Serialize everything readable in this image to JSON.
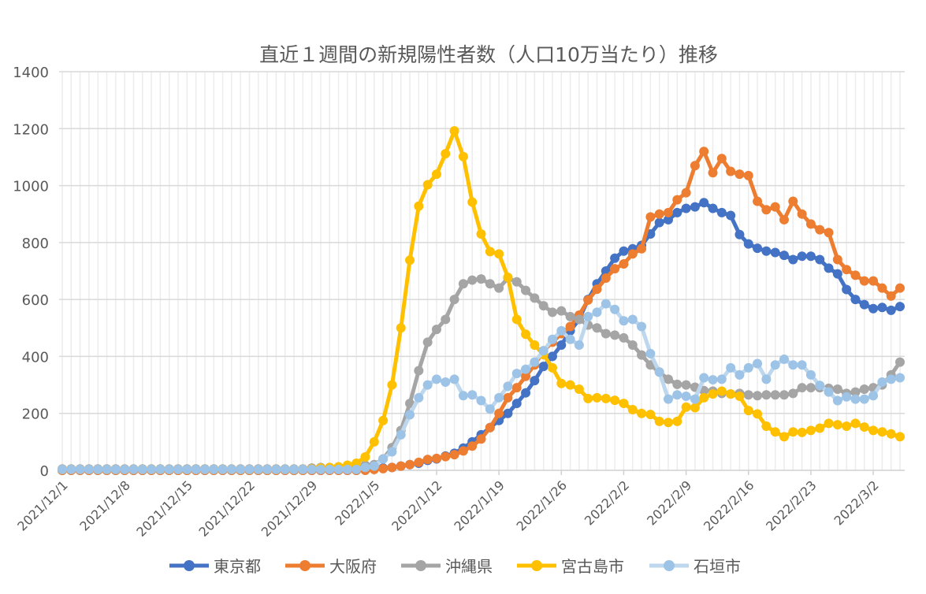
{
  "chart_data": {
    "type": "line",
    "title": "直近１週間の新規陽性者数（人口10万当たり）推移",
    "xlabel": "",
    "ylabel": "",
    "ylim": [
      0,
      1400
    ],
    "yticks": [
      0,
      200,
      400,
      600,
      800,
      1000,
      1200,
      1400
    ],
    "xtick_labels": [
      "2021/12/1",
      "2021/12/8",
      "2021/12/15",
      "2021/12/22",
      "2021/12/29",
      "2022/1/5",
      "2022/1/12",
      "2022/1/19",
      "2022/1/26",
      "2022/2/2",
      "2022/2/9",
      "2022/2/16",
      "2022/2/23",
      "2022/3/2"
    ],
    "grid": "on",
    "legend_position": "bottom",
    "x": [
      "2021/12/1",
      "2021/12/2",
      "2021/12/3",
      "2021/12/4",
      "2021/12/5",
      "2021/12/6",
      "2021/12/7",
      "2021/12/8",
      "2021/12/9",
      "2021/12/10",
      "2021/12/11",
      "2021/12/12",
      "2021/12/13",
      "2021/12/14",
      "2021/12/15",
      "2021/12/16",
      "2021/12/17",
      "2021/12/18",
      "2021/12/19",
      "2021/12/20",
      "2021/12/21",
      "2021/12/22",
      "2021/12/23",
      "2021/12/24",
      "2021/12/25",
      "2021/12/26",
      "2021/12/27",
      "2021/12/28",
      "2021/12/29",
      "2021/12/30",
      "2021/12/31",
      "2022/1/1",
      "2022/1/2",
      "2022/1/3",
      "2022/1/4",
      "2022/1/5",
      "2022/1/6",
      "2022/1/7",
      "2022/1/8",
      "2022/1/9",
      "2022/1/10",
      "2022/1/11",
      "2022/1/12",
      "2022/1/13",
      "2022/1/14",
      "2022/1/15",
      "2022/1/16",
      "2022/1/17",
      "2022/1/18",
      "2022/1/19",
      "2022/1/20",
      "2022/1/21",
      "2022/1/22",
      "2022/1/23",
      "2022/1/24",
      "2022/1/25",
      "2022/1/26",
      "2022/1/27",
      "2022/1/28",
      "2022/1/29",
      "2022/1/30",
      "2022/1/31",
      "2022/2/1",
      "2022/2/2",
      "2022/2/3",
      "2022/2/4",
      "2022/2/5",
      "2022/2/6",
      "2022/2/7",
      "2022/2/8",
      "2022/2/9",
      "2022/2/10",
      "2022/2/11",
      "2022/2/12",
      "2022/2/13",
      "2022/2/14",
      "2022/2/15",
      "2022/2/16",
      "2022/2/17",
      "2022/2/18",
      "2022/2/19",
      "2022/2/20",
      "2022/2/21",
      "2022/2/22",
      "2022/2/23",
      "2022/2/24",
      "2022/2/25",
      "2022/2/26",
      "2022/2/27",
      "2022/2/28",
      "2022/3/1",
      "2022/3/2",
      "2022/3/3",
      "2022/3/4",
      "2022/3/5"
    ],
    "series": [
      {
        "name": "東京都",
        "color": "#4472C4",
        "marker_color": "#4472C4",
        "values": [
          0,
          0,
          0,
          0,
          0,
          0,
          0,
          0,
          0,
          0,
          0,
          0,
          0,
          0,
          0,
          0,
          0,
          0,
          0,
          0,
          0,
          0,
          0,
          0,
          0,
          0,
          0,
          0,
          0,
          0,
          0,
          0,
          0,
          0,
          2,
          5,
          8,
          10,
          15,
          20,
          25,
          35,
          40,
          50,
          60,
          78,
          100,
          125,
          150,
          175,
          200,
          235,
          272,
          315,
          365,
          400,
          440,
          490,
          530,
          600,
          655,
          700,
          745,
          770,
          778,
          790,
          830,
          870,
          880,
          905,
          920,
          925,
          940,
          920,
          905,
          895,
          828,
          795,
          780,
          770,
          765,
          755,
          740,
          752,
          752,
          740,
          710,
          690,
          635,
          600,
          582,
          568,
          572,
          562,
          575
        ]
      },
      {
        "name": "大阪府",
        "color": "#ED7D31",
        "marker_color": "#ED7D31",
        "values": [
          0,
          0,
          0,
          0,
          0,
          0,
          0,
          0,
          0,
          0,
          0,
          0,
          0,
          0,
          0,
          0,
          0,
          0,
          0,
          0,
          0,
          0,
          0,
          0,
          0,
          0,
          0,
          0,
          0,
          0,
          0,
          0,
          0,
          0,
          0,
          3,
          6,
          10,
          15,
          20,
          28,
          38,
          42,
          48,
          55,
          68,
          85,
          110,
          150,
          200,
          255,
          290,
          330,
          370,
          420,
          450,
          480,
          505,
          545,
          598,
          636,
          675,
          708,
          725,
          760,
          778,
          890,
          900,
          905,
          950,
          975,
          1070,
          1120,
          1045,
          1095,
          1050,
          1040,
          1035,
          945,
          915,
          925,
          880,
          945,
          900,
          865,
          845,
          835,
          740,
          705,
          685,
          665,
          665,
          640,
          612,
          640
        ]
      },
      {
        "name": "沖縄県",
        "color": "#A5A5A5",
        "marker_color": "#A5A5A5",
        "values": [
          5,
          5,
          5,
          5,
          5,
          5,
          5,
          5,
          5,
          5,
          5,
          5,
          5,
          5,
          5,
          5,
          5,
          5,
          5,
          5,
          5,
          5,
          5,
          5,
          5,
          5,
          5,
          5,
          8,
          10,
          10,
          12,
          12,
          15,
          18,
          20,
          40,
          80,
          140,
          235,
          350,
          450,
          495,
          530,
          600,
          655,
          668,
          672,
          655,
          640,
          675,
          662,
          632,
          605,
          578,
          555,
          560,
          540,
          530,
          510,
          500,
          480,
          475,
          465,
          440,
          405,
          370,
          345,
          320,
          302,
          300,
          292,
          280,
          278,
          270,
          268,
          270,
          265,
          262,
          265,
          265,
          265,
          270,
          290,
          290,
          290,
          288,
          285,
          270,
          275,
          285,
          290,
          300,
          335,
          380
        ]
      },
      {
        "name": "宮古島市",
        "color": "#FFC000",
        "marker_color": "#FFC000",
        "values": [
          3,
          3,
          3,
          3,
          3,
          3,
          3,
          3,
          3,
          3,
          3,
          3,
          3,
          3,
          3,
          3,
          3,
          3,
          3,
          3,
          3,
          3,
          3,
          3,
          3,
          3,
          3,
          3,
          5,
          8,
          10,
          12,
          18,
          25,
          47,
          100,
          175,
          300,
          500,
          738,
          928,
          1003,
          1040,
          1112,
          1192,
          1102,
          942,
          830,
          768,
          760,
          678,
          530,
          478,
          440,
          406,
          360,
          305,
          300,
          285,
          252,
          255,
          252,
          246,
          235,
          213,
          200,
          196,
          172,
          168,
          172,
          222,
          220,
          255,
          268,
          278,
          268,
          260,
          210,
          198,
          155,
          135,
          118,
          135,
          133,
          140,
          148,
          165,
          160,
          155,
          165,
          152,
          140,
          135,
          128,
          118
        ]
      },
      {
        "name": "石垣市",
        "color": "#BDD7EE",
        "marker_color": "#9DC3E6",
        "values": [
          3,
          3,
          3,
          3,
          3,
          3,
          3,
          3,
          3,
          3,
          3,
          3,
          3,
          3,
          3,
          3,
          3,
          3,
          3,
          3,
          3,
          3,
          3,
          3,
          3,
          3,
          3,
          3,
          3,
          3,
          3,
          3,
          3,
          3,
          10,
          15,
          40,
          65,
          125,
          195,
          255,
          300,
          320,
          310,
          320,
          262,
          265,
          245,
          215,
          255,
          295,
          340,
          355,
          380,
          420,
          460,
          490,
          460,
          440,
          540,
          555,
          585,
          565,
          525,
          530,
          505,
          410,
          345,
          250,
          265,
          260,
          250,
          325,
          318,
          320,
          360,
          335,
          360,
          375,
          320,
          370,
          390,
          370,
          370,
          335,
          298,
          275,
          245,
          258,
          250,
          250,
          262,
          310,
          320,
          325
        ]
      }
    ]
  }
}
